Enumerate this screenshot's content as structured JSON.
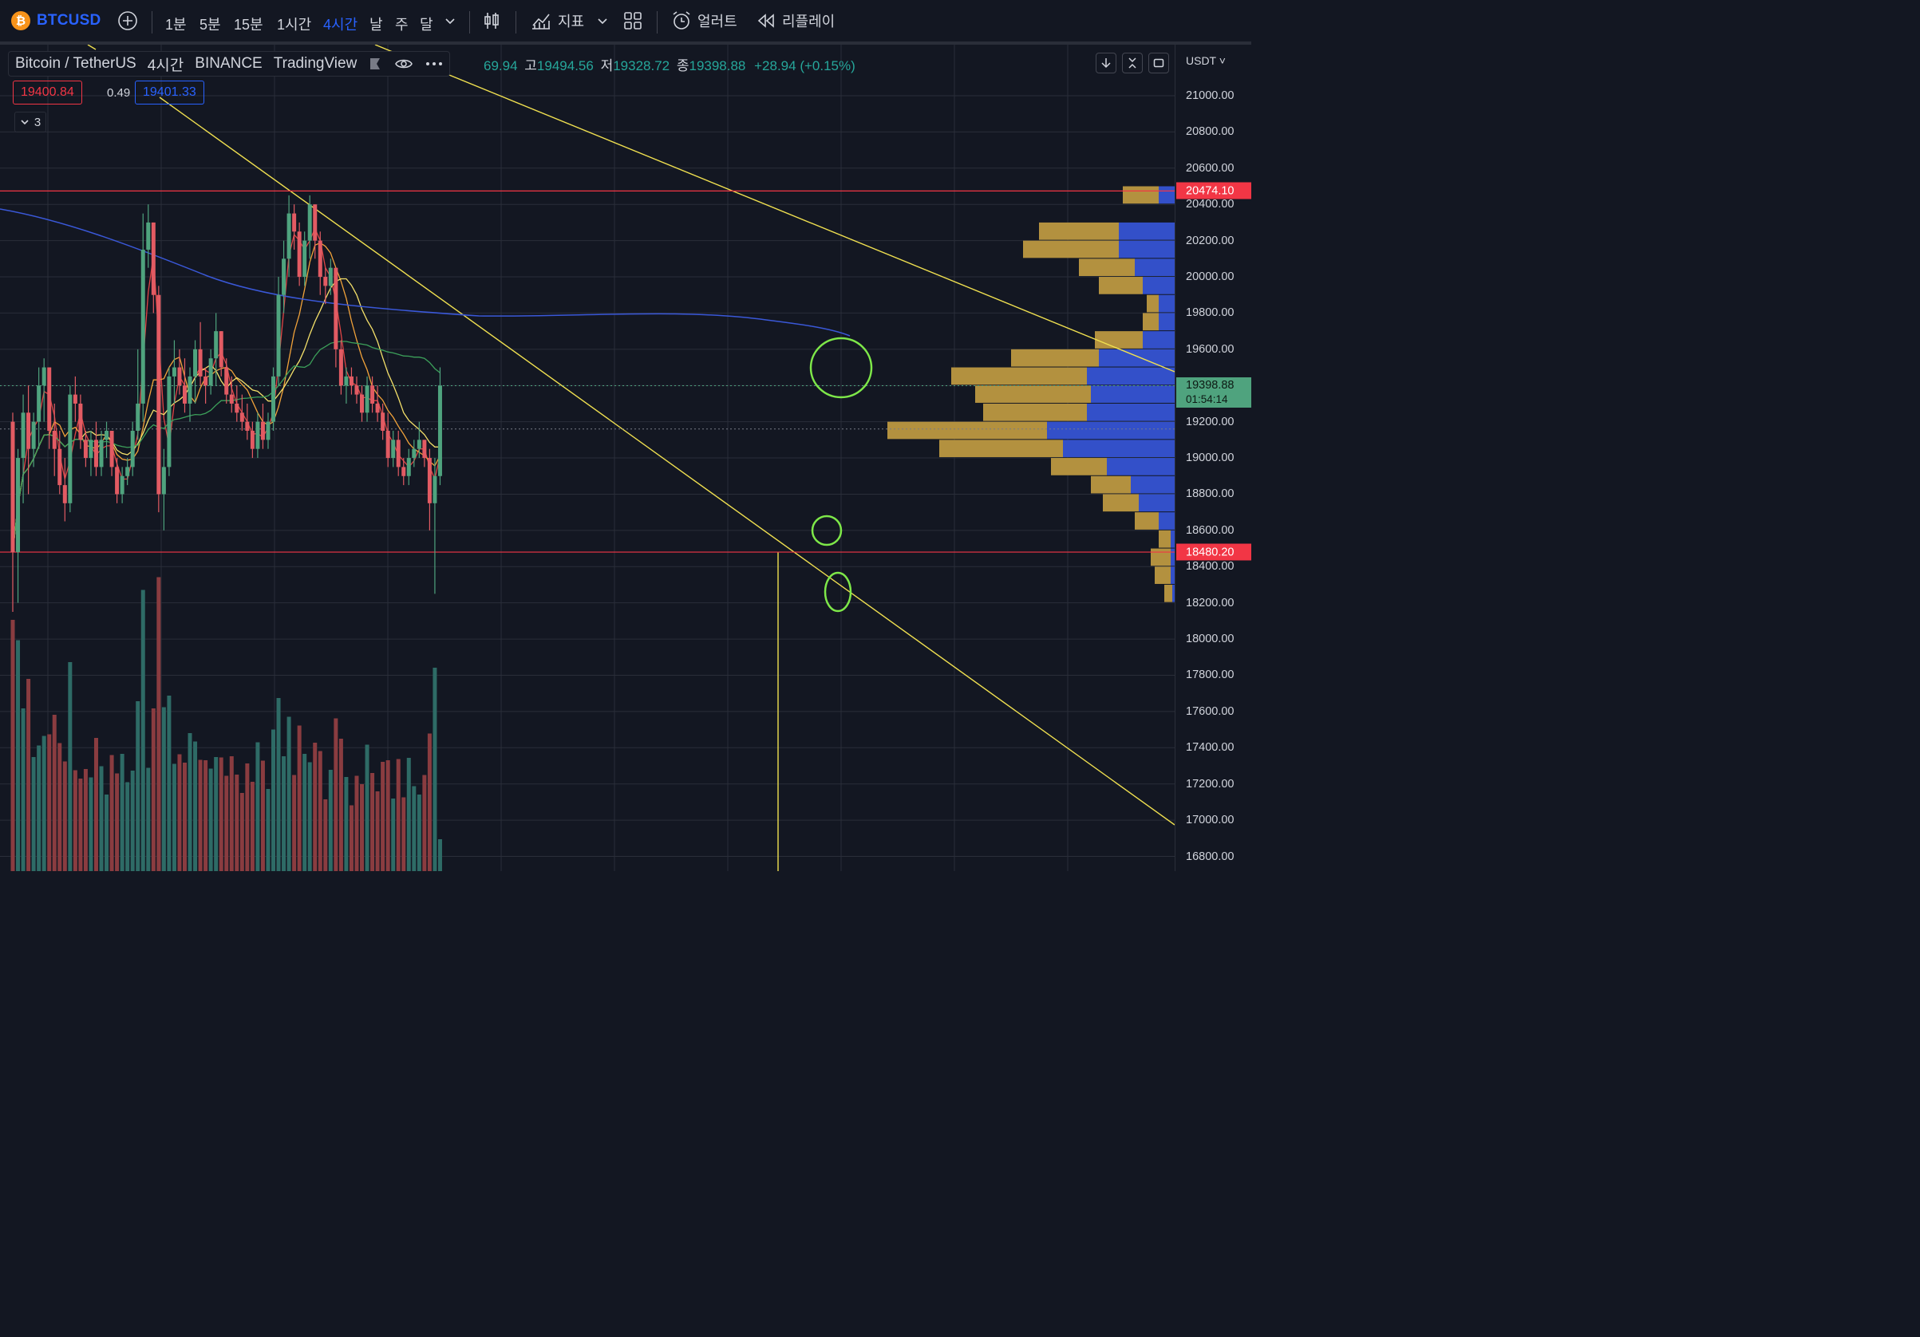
{
  "toolbar": {
    "symbol": "BTCUSD",
    "timeframes": [
      "1분",
      "5분",
      "15분",
      "1시간",
      "4시간",
      "날",
      "주",
      "달"
    ],
    "active_timeframe": "4시간",
    "indicators_label": "지표",
    "alert_label": "얼러트",
    "replay_label": "리플레이"
  },
  "legend": {
    "pair": "Bitcoin / TetherUS",
    "interval": "4시간",
    "exchange": "BINANCE",
    "source": "TradingView",
    "open_partial": "69.94",
    "high_label": "고",
    "high": "19494.56",
    "low_label": "저",
    "low": "19328.72",
    "close_label": "종",
    "close": "19398.88",
    "change": "+28.94 (+0.15%)",
    "bid": "19400.84",
    "spread": "0.49",
    "ask": "19401.33",
    "hidden_count": "3"
  },
  "scale": {
    "currency": "USDT",
    "ticks": [
      "21000.00",
      "20800.00",
      "20600.00",
      "20400.00",
      "20200.00",
      "20000.00",
      "19800.00",
      "19600.00",
      "19400.00",
      "19200.00",
      "19000.00",
      "18800.00",
      "18600.00",
      "18400.00",
      "18200.00",
      "18000.00",
      "17800.00",
      "17600.00",
      "17400.00",
      "17200.00",
      "17000.00",
      "16800.00"
    ],
    "resistance_label": "20474.10",
    "support_label": "18480.20",
    "last_price": "19398.88",
    "countdown": "01:54:14"
  },
  "colors": {
    "up": "#4fa37e",
    "down": "#e25b63",
    "bg": "#131722",
    "accent": "#2962ff",
    "trend": "#f0e050",
    "marker": "#7ee849"
  },
  "chart_data": {
    "type": "candlestick",
    "symbol": "BTCUSDT",
    "ylim": [
      16750,
      21100
    ],
    "horizontal_lines": [
      20474.1,
      18480.2
    ],
    "candles": [
      [
        19200,
        19250,
        18150,
        18480
      ],
      [
        18480,
        19050,
        18200,
        19000
      ],
      [
        19000,
        19350,
        18750,
        19250
      ],
      [
        19250,
        19400,
        18800,
        19050
      ],
      [
        19050,
        19250,
        18950,
        19200
      ],
      [
        19200,
        19500,
        19050,
        19400
      ],
      [
        19400,
        19550,
        19200,
        19500
      ],
      [
        19500,
        19500,
        19050,
        19150
      ],
      [
        19150,
        19300,
        18900,
        19050
      ],
      [
        19050,
        19150,
        18800,
        18850
      ],
      [
        18850,
        19000,
        18650,
        18750
      ],
      [
        18750,
        19400,
        18700,
        19350
      ],
      [
        19350,
        19450,
        19200,
        19300
      ],
      [
        19300,
        19350,
        19050,
        19100
      ],
      [
        19100,
        19150,
        18950,
        19000
      ],
      [
        19000,
        19150,
        18900,
        19100
      ],
      [
        19100,
        19200,
        18900,
        18950
      ],
      [
        18950,
        19150,
        18900,
        19100
      ],
      [
        19100,
        19200,
        19000,
        19150
      ],
      [
        19150,
        19150,
        18900,
        18950
      ],
      [
        18950,
        19000,
        18750,
        18800
      ],
      [
        18800,
        18950,
        18750,
        18900
      ],
      [
        18900,
        19000,
        18850,
        18950
      ],
      [
        18950,
        19200,
        18900,
        19150
      ],
      [
        19150,
        19600,
        19100,
        19300
      ],
      [
        19300,
        20350,
        19200,
        20150
      ],
      [
        20150,
        20400,
        20050,
        20300
      ],
      [
        20300,
        20300,
        19800,
        19900
      ],
      [
        19900,
        19950,
        18700,
        18800
      ],
      [
        18800,
        19050,
        18600,
        18950
      ],
      [
        18950,
        19500,
        18900,
        19450
      ],
      [
        19450,
        19650,
        19300,
        19500
      ],
      [
        19500,
        19600,
        19350,
        19400
      ],
      [
        19400,
        19550,
        19250,
        19300
      ],
      [
        19300,
        19500,
        19200,
        19450
      ],
      [
        19450,
        19650,
        19300,
        19600
      ],
      [
        19600,
        19750,
        19400,
        19450
      ],
      [
        19450,
        19500,
        19300,
        19400
      ],
      [
        19400,
        19600,
        19350,
        19550
      ],
      [
        19550,
        19800,
        19400,
        19700
      ],
      [
        19700,
        19700,
        19450,
        19500
      ],
      [
        19500,
        19550,
        19300,
        19350
      ],
      [
        19350,
        19450,
        19250,
        19300
      ],
      [
        19300,
        19400,
        19200,
        19250
      ],
      [
        19250,
        19350,
        19150,
        19200
      ],
      [
        19200,
        19300,
        19100,
        19150
      ],
      [
        19150,
        19200,
        19000,
        19050
      ],
      [
        19050,
        19250,
        19000,
        19200
      ],
      [
        19200,
        19300,
        19050,
        19100
      ],
      [
        19100,
        19250,
        19050,
        19200
      ],
      [
        19200,
        19500,
        19150,
        19450
      ],
      [
        19450,
        20000,
        19400,
        19900
      ],
      [
        19900,
        20200,
        19800,
        20100
      ],
      [
        20100,
        20450,
        20000,
        20350
      ],
      [
        20350,
        20400,
        20150,
        20250
      ],
      [
        20250,
        20300,
        19950,
        20000
      ],
      [
        20000,
        20250,
        19950,
        20200
      ],
      [
        20200,
        20450,
        20100,
        20400
      ],
      [
        20400,
        20400,
        20100,
        20200
      ],
      [
        20200,
        20250,
        19900,
        20000
      ],
      [
        20000,
        20050,
        19850,
        19950
      ],
      [
        19950,
        20100,
        19900,
        20050
      ],
      [
        20050,
        20050,
        19500,
        19600
      ],
      [
        19600,
        19650,
        19350,
        19400
      ],
      [
        19400,
        19500,
        19300,
        19450
      ],
      [
        19450,
        19500,
        19350,
        19400
      ],
      [
        19400,
        19450,
        19300,
        19350
      ],
      [
        19350,
        19400,
        19200,
        19250
      ],
      [
        19250,
        19450,
        19200,
        19400
      ],
      [
        19400,
        19450,
        19250,
        19300
      ],
      [
        19300,
        19400,
        19200,
        19250
      ],
      [
        19250,
        19300,
        19100,
        19150
      ],
      [
        19150,
        19250,
        18950,
        19000
      ],
      [
        19000,
        19150,
        18950,
        19100
      ],
      [
        19100,
        19150,
        18900,
        18950
      ],
      [
        18950,
        19000,
        18850,
        18900
      ],
      [
        18900,
        19050,
        18850,
        19000
      ],
      [
        19000,
        19100,
        18950,
        19050
      ],
      [
        19050,
        19200,
        19000,
        19100
      ],
      [
        19100,
        19100,
        18950,
        19000
      ],
      [
        19000,
        19050,
        18600,
        18750
      ],
      [
        18750,
        19000,
        18250,
        18900
      ],
      [
        18900,
        19500,
        18850,
        19400
      ]
    ],
    "annotations": [
      "circle-high",
      "circle-mid",
      "circle-low"
    ]
  }
}
